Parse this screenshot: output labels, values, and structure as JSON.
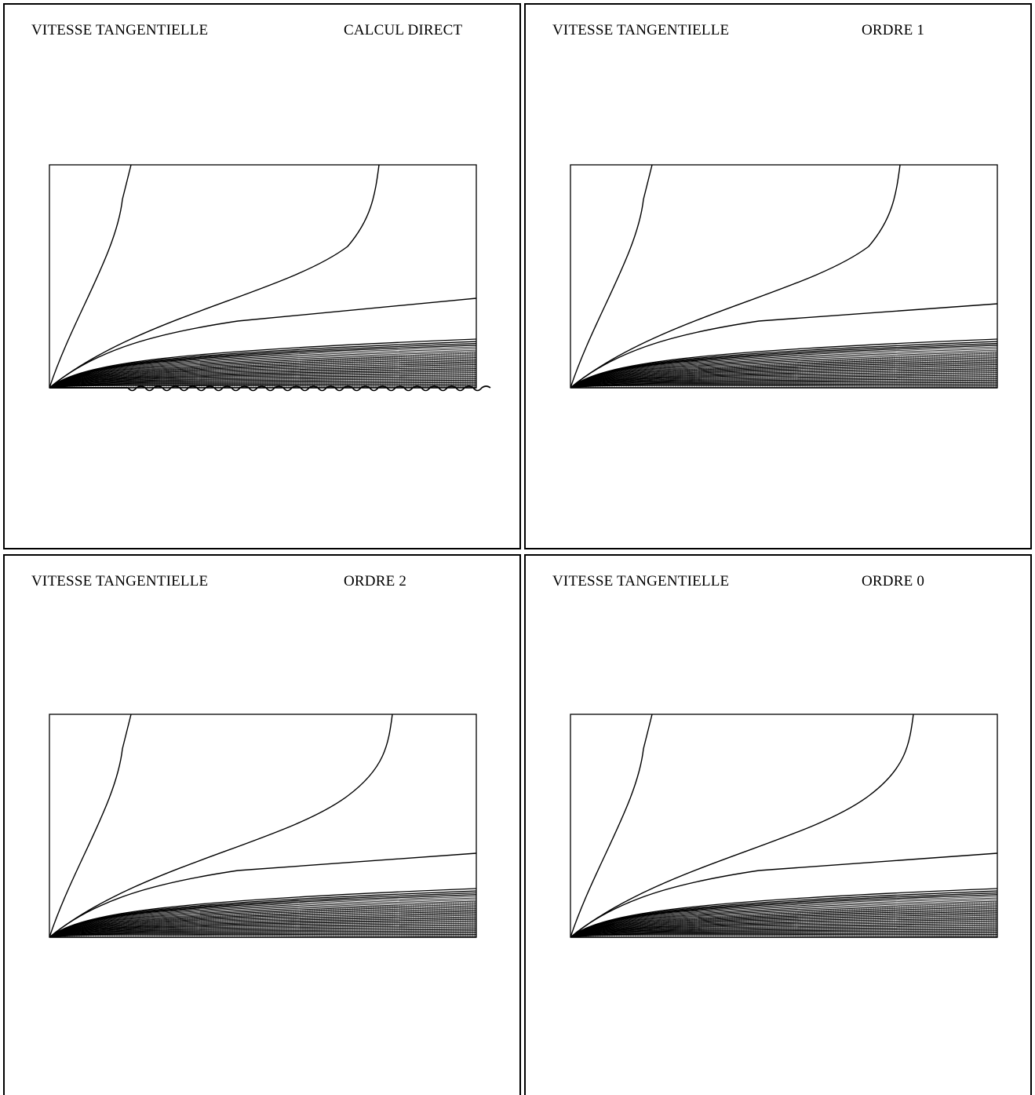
{
  "panels": [
    {
      "title": "VITESSE TANGENTIELLE",
      "label": "CALCUL DIRECT",
      "variant": "direct"
    },
    {
      "title": "VITESSE TANGENTIELLE",
      "label": "ORDRE 1",
      "variant": "ordre1"
    },
    {
      "title": "VITESSE TANGENTIELLE",
      "label": "ORDRE 2",
      "variant": "ordre2"
    },
    {
      "title": "VITESSE TANGENTIELLE",
      "label": "ORDRE 0",
      "variant": "ordre0"
    }
  ],
  "colors": {
    "line": "#000000",
    "background": "#ffffff"
  }
}
